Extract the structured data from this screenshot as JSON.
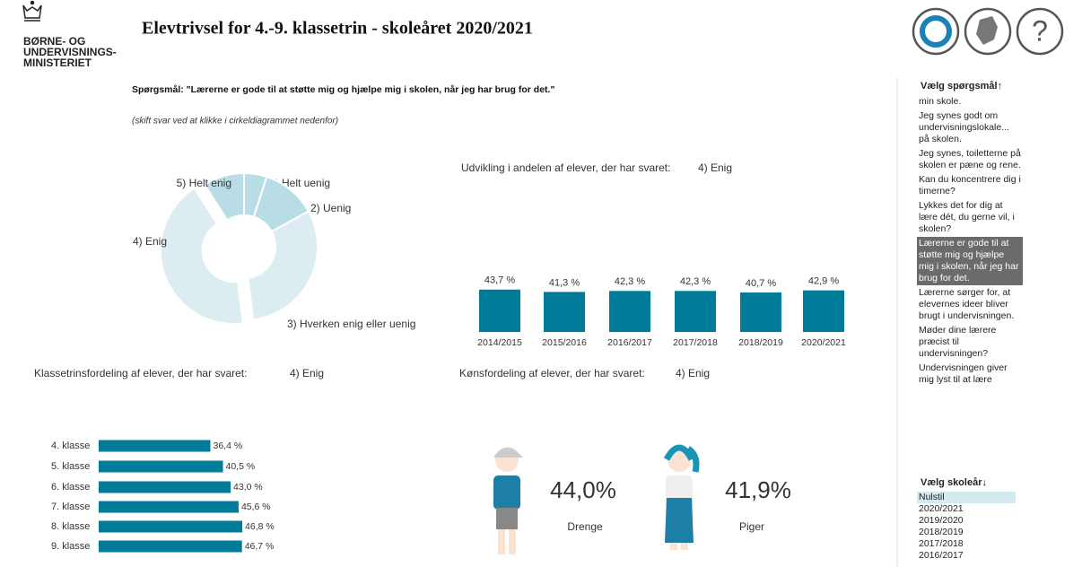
{
  "header": {
    "title": "Elevtrivsel for 4.-9. klassetrin - skoleåret 2020/2021",
    "logo_lines": [
      "BØRNE- OG",
      "UNDERVISNINGS-",
      "MINISTERIET"
    ]
  },
  "question": "Spørgsmål: \"Lærerne er gode til at støtte mig og hjælpe mig i skolen, når jeg har brug for det.\"",
  "hint": "(skift svar ved at klikke i cirkeldiagrammet nedenfor)",
  "chart_data": [
    {
      "type": "pie",
      "categories": [
        "1) Helt uenig",
        "2) Uenig",
        "3) Hverken enig eller uenig",
        "4) Enig",
        "5) Helt enig"
      ],
      "values": [
        5,
        12,
        31,
        43,
        9
      ],
      "colors": [
        "#b9dde6",
        "#b9dde6",
        "#dcedf2",
        "#dcedf2",
        "#b9dde6"
      ],
      "exploded": 3
    },
    {
      "type": "bar",
      "title": "Udvikling i andelen af elever, der har svaret:",
      "subtitle": "4) Enig",
      "categories": [
        "2014/2015",
        "2015/2016",
        "2016/2017",
        "2017/2018",
        "2018/2019",
        "2020/2021"
      ],
      "values": [
        43.7,
        41.3,
        42.3,
        42.3,
        40.7,
        42.9
      ],
      "value_labels": [
        "43,7 %",
        "41,3 %",
        "42,3 %",
        "42,3 %",
        "40,7 %",
        "42,9 %"
      ],
      "color": "#007b98"
    },
    {
      "type": "hbar",
      "title": "Klassetrinsfordeling af elever, der har svaret:",
      "subtitle": "4) Enig",
      "categories": [
        "4. klasse",
        "5. klasse",
        "6. klasse",
        "7. klasse",
        "8. klasse",
        "9. klasse"
      ],
      "values": [
        36.4,
        40.5,
        43.0,
        45.6,
        46.8,
        46.7
      ],
      "value_labels": [
        "36,4 %",
        "40,5 %",
        "43,0 %",
        "45,6 %",
        "46,8 %",
        "46,7 %"
      ],
      "color": "#007b98"
    },
    {
      "type": "gender",
      "title": "Kønsfordeling af elever, der har svaret:",
      "subtitle": "4) Enig",
      "categories": [
        "Drenge",
        "Piger"
      ],
      "values": [
        44.0,
        41.9
      ],
      "value_labels": [
        "44,0%",
        "41,9%"
      ]
    }
  ],
  "sidebar": {
    "question_heading": "Vælg spørgsmål↑",
    "questions": [
      "min skole.",
      "Jeg synes godt om undervisningslokale... på skolen.",
      "Jeg synes, toiletterne på skolen er pæne og rene.",
      "Kan du koncentrere dig i timerne?",
      "Lykkes det for dig at lære dét, du gerne vil, i skolen?",
      "Lærerne er gode til at støtte mig og hjælpe mig i skolen, når jeg har brug for det.",
      "Lærerne sørger for, at elevernes ideer bliver brugt i undervisningen.",
      "Møder dine lærere præcist til undervisningen?",
      "Undervisningen giver mig lyst til at lære"
    ],
    "selected": 5,
    "year_heading": "Vælg skoleår↓",
    "years": [
      "Nulstil",
      "2020/2021",
      "2019/2020",
      "2018/2019",
      "2017/2018",
      "2016/2017"
    ]
  }
}
